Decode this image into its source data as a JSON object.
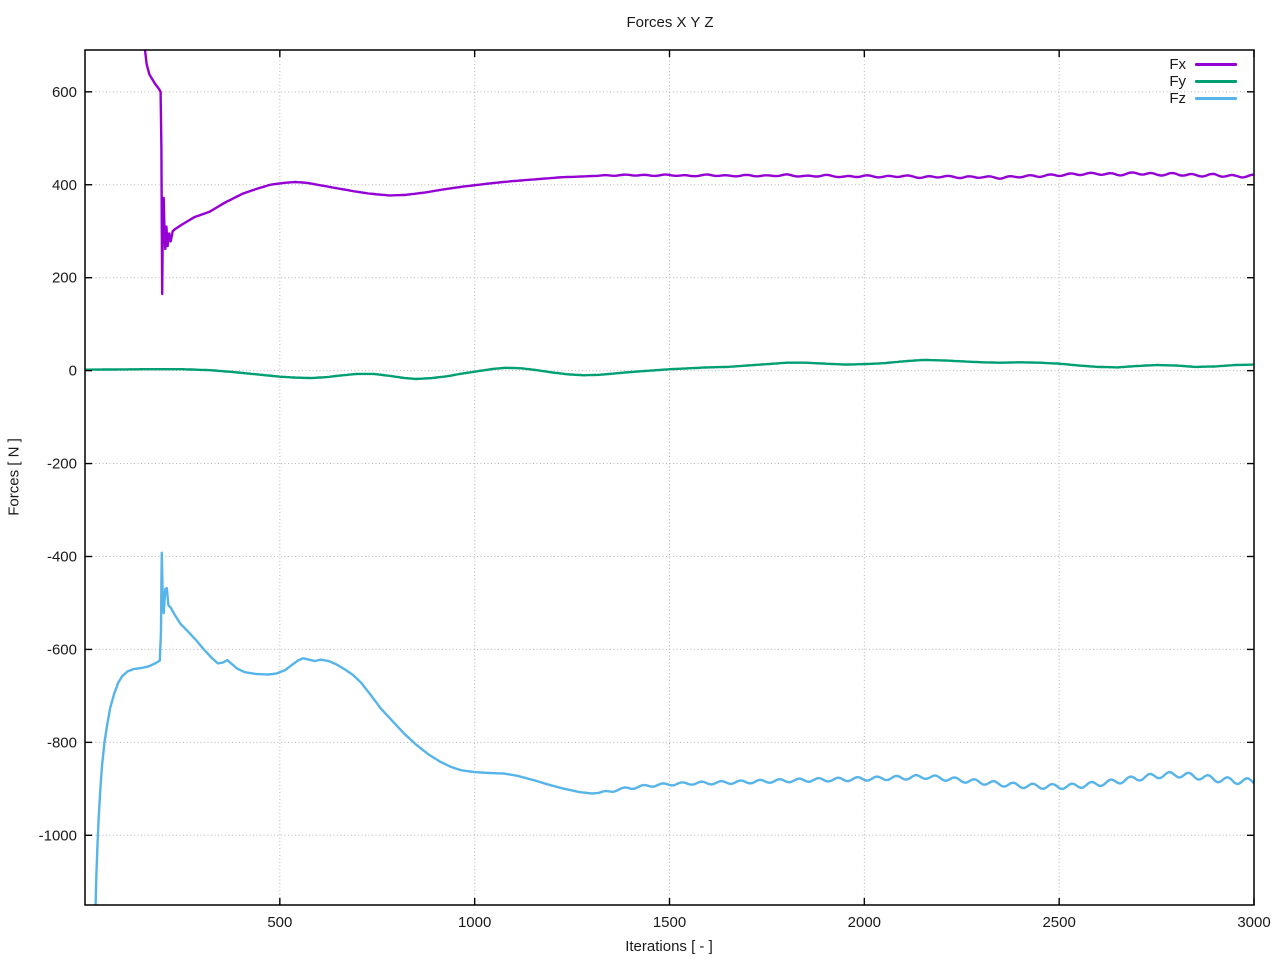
{
  "chart_data": {
    "type": "line",
    "title": "Forces X Y Z",
    "xlabel": "Iterations [ - ]",
    "ylabel": "Forces [ N ]",
    "xlim": [
      0,
      3000
    ],
    "ylim": [
      -1150,
      690
    ],
    "xticks": [
      500,
      1000,
      1500,
      2000,
      2500,
      3000
    ],
    "yticks": [
      600,
      400,
      200,
      0,
      -200,
      -400,
      -600,
      -800,
      -1000
    ],
    "grid": true,
    "legend_position": "top-right-inside",
    "background_color": "#ffffff",
    "border_color": "#000000",
    "grid_color": "#b5b5b5",
    "text_color": "#1a1a1a",
    "series": [
      {
        "name": "Fx",
        "color": "#9400D3",
        "width": 2.4,
        "ripple": {
          "from": 1320,
          "to": 3000,
          "period": 52,
          "amplitude": 2.2
        },
        "points": [
          [
            150,
            720
          ],
          [
            158,
            660
          ],
          [
            165,
            638
          ],
          [
            180,
            617
          ],
          [
            190,
            606
          ],
          [
            194,
            600
          ],
          [
            196,
            480
          ],
          [
            197,
            300
          ],
          [
            198,
            165
          ],
          [
            199,
            240
          ],
          [
            200,
            330
          ],
          [
            202,
            372
          ],
          [
            204,
            300
          ],
          [
            206,
            262
          ],
          [
            209,
            310
          ],
          [
            212,
            268
          ],
          [
            216,
            295
          ],
          [
            220,
            278
          ],
          [
            225,
            300
          ],
          [
            232,
            305
          ],
          [
            250,
            315
          ],
          [
            280,
            330
          ],
          [
            320,
            342
          ],
          [
            360,
            362
          ],
          [
            405,
            381
          ],
          [
            440,
            391
          ],
          [
            475,
            400
          ],
          [
            510,
            404
          ],
          [
            540,
            406
          ],
          [
            570,
            404
          ],
          [
            610,
            398
          ],
          [
            650,
            392
          ],
          [
            690,
            386
          ],
          [
            730,
            381
          ],
          [
            780,
            377
          ],
          [
            820,
            378
          ],
          [
            870,
            383
          ],
          [
            920,
            390
          ],
          [
            970,
            396
          ],
          [
            1000,
            399
          ],
          [
            1050,
            404
          ],
          [
            1100,
            408
          ],
          [
            1160,
            412
          ],
          [
            1220,
            416
          ],
          [
            1280,
            418
          ],
          [
            1340,
            420
          ],
          [
            1400,
            421
          ],
          [
            1450,
            420
          ],
          [
            1500,
            421
          ],
          [
            1550,
            419
          ],
          [
            1600,
            421
          ],
          [
            1650,
            419
          ],
          [
            1700,
            420
          ],
          [
            1750,
            419
          ],
          [
            1800,
            421
          ],
          [
            1850,
            418
          ],
          [
            1900,
            420
          ],
          [
            1950,
            417
          ],
          [
            2000,
            419
          ],
          [
            2050,
            417
          ],
          [
            2100,
            419
          ],
          [
            2150,
            416
          ],
          [
            2200,
            418
          ],
          [
            2250,
            416
          ],
          [
            2300,
            417
          ],
          [
            2350,
            415
          ],
          [
            2400,
            418
          ],
          [
            2450,
            419
          ],
          [
            2500,
            421
          ],
          [
            2550,
            423
          ],
          [
            2600,
            424
          ],
          [
            2650,
            422
          ],
          [
            2700,
            425
          ],
          [
            2750,
            422
          ],
          [
            2800,
            423
          ],
          [
            2850,
            420
          ],
          [
            2900,
            421
          ],
          [
            2950,
            418
          ],
          [
            3000,
            419
          ]
        ]
      },
      {
        "name": "Fy",
        "color": "#009E73",
        "width": 2.4,
        "points": [
          [
            0,
            2
          ],
          [
            150,
            3
          ],
          [
            250,
            3
          ],
          [
            320,
            1
          ],
          [
            380,
            -3
          ],
          [
            440,
            -8
          ],
          [
            500,
            -13
          ],
          [
            540,
            -15
          ],
          [
            580,
            -16
          ],
          [
            620,
            -14
          ],
          [
            660,
            -10
          ],
          [
            700,
            -7
          ],
          [
            740,
            -7
          ],
          [
            780,
            -11
          ],
          [
            820,
            -16
          ],
          [
            850,
            -18
          ],
          [
            890,
            -16
          ],
          [
            930,
            -12
          ],
          [
            970,
            -6
          ],
          [
            1010,
            -1
          ],
          [
            1050,
            4
          ],
          [
            1080,
            6
          ],
          [
            1120,
            5
          ],
          [
            1160,
            1
          ],
          [
            1200,
            -4
          ],
          [
            1240,
            -8
          ],
          [
            1280,
            -10
          ],
          [
            1320,
            -9
          ],
          [
            1360,
            -6
          ],
          [
            1400,
            -3
          ],
          [
            1450,
            0
          ],
          [
            1500,
            3
          ],
          [
            1550,
            5
          ],
          [
            1600,
            7
          ],
          [
            1650,
            8
          ],
          [
            1700,
            11
          ],
          [
            1750,
            14
          ],
          [
            1800,
            17
          ],
          [
            1850,
            17
          ],
          [
            1900,
            15
          ],
          [
            1950,
            13
          ],
          [
            2000,
            14
          ],
          [
            2050,
            16
          ],
          [
            2100,
            20
          ],
          [
            2150,
            23
          ],
          [
            2200,
            22
          ],
          [
            2250,
            20
          ],
          [
            2300,
            18
          ],
          [
            2350,
            17
          ],
          [
            2400,
            18
          ],
          [
            2450,
            17
          ],
          [
            2500,
            15
          ],
          [
            2550,
            11
          ],
          [
            2600,
            8
          ],
          [
            2650,
            7
          ],
          [
            2700,
            10
          ],
          [
            2750,
            12
          ],
          [
            2800,
            11
          ],
          [
            2850,
            8
          ],
          [
            2900,
            9
          ],
          [
            2950,
            12
          ],
          [
            3000,
            13
          ]
        ]
      },
      {
        "name": "Fz",
        "color": "#56B4E9",
        "width": 2.4,
        "ripple": {
          "from": 1320,
          "to": 3000,
          "period": 50,
          "amplitude": 5.5
        },
        "points": [
          [
            26,
            -1190
          ],
          [
            29,
            -1090
          ],
          [
            32,
            -1020
          ],
          [
            35,
            -965
          ],
          [
            39,
            -905
          ],
          [
            44,
            -848
          ],
          [
            50,
            -800
          ],
          [
            57,
            -762
          ],
          [
            65,
            -725
          ],
          [
            75,
            -695
          ],
          [
            85,
            -672
          ],
          [
            95,
            -658
          ],
          [
            108,
            -648
          ],
          [
            125,
            -642
          ],
          [
            145,
            -640
          ],
          [
            165,
            -636
          ],
          [
            180,
            -630
          ],
          [
            192,
            -624
          ],
          [
            195,
            -560
          ],
          [
            196,
            -460
          ],
          [
            197,
            -392
          ],
          [
            199,
            -470
          ],
          [
            202,
            -522
          ],
          [
            206,
            -470
          ],
          [
            210,
            -468
          ],
          [
            214,
            -505
          ],
          [
            220,
            -510
          ],
          [
            230,
            -525
          ],
          [
            245,
            -545
          ],
          [
            265,
            -562
          ],
          [
            285,
            -580
          ],
          [
            305,
            -600
          ],
          [
            325,
            -618
          ],
          [
            341,
            -630
          ],
          [
            355,
            -628
          ],
          [
            365,
            -623
          ],
          [
            375,
            -630
          ],
          [
            390,
            -641
          ],
          [
            410,
            -649
          ],
          [
            440,
            -653
          ],
          [
            470,
            -654
          ],
          [
            490,
            -652
          ],
          [
            513,
            -645
          ],
          [
            530,
            -634
          ],
          [
            548,
            -623
          ],
          [
            560,
            -619
          ],
          [
            575,
            -622
          ],
          [
            590,
            -625
          ],
          [
            605,
            -622
          ],
          [
            625,
            -625
          ],
          [
            645,
            -632
          ],
          [
            665,
            -642
          ],
          [
            688,
            -655
          ],
          [
            710,
            -673
          ],
          [
            735,
            -700
          ],
          [
            760,
            -728
          ],
          [
            790,
            -755
          ],
          [
            820,
            -782
          ],
          [
            850,
            -805
          ],
          [
            880,
            -825
          ],
          [
            910,
            -841
          ],
          [
            940,
            -853
          ],
          [
            965,
            -860
          ],
          [
            1000,
            -864
          ],
          [
            1040,
            -866
          ],
          [
            1075,
            -867
          ],
          [
            1110,
            -872
          ],
          [
            1150,
            -881
          ],
          [
            1190,
            -891
          ],
          [
            1230,
            -900
          ],
          [
            1270,
            -907
          ],
          [
            1300,
            -910
          ],
          [
            1330,
            -908
          ],
          [
            1360,
            -903
          ],
          [
            1390,
            -899
          ],
          [
            1420,
            -896
          ],
          [
            1450,
            -893
          ],
          [
            1500,
            -890
          ],
          [
            1560,
            -888
          ],
          [
            1620,
            -887
          ],
          [
            1700,
            -885
          ],
          [
            1780,
            -883
          ],
          [
            1860,
            -881
          ],
          [
            1940,
            -880
          ],
          [
            2020,
            -878
          ],
          [
            2100,
            -876
          ],
          [
            2160,
            -874
          ],
          [
            2220,
            -879
          ],
          [
            2280,
            -884
          ],
          [
            2340,
            -889
          ],
          [
            2400,
            -893
          ],
          [
            2460,
            -895
          ],
          [
            2520,
            -895
          ],
          [
            2580,
            -891
          ],
          [
            2640,
            -885
          ],
          [
            2700,
            -877
          ],
          [
            2760,
            -871
          ],
          [
            2800,
            -869
          ],
          [
            2850,
            -873
          ],
          [
            2900,
            -879
          ],
          [
            2950,
            -883
          ],
          [
            3000,
            -884
          ]
        ]
      }
    ]
  }
}
